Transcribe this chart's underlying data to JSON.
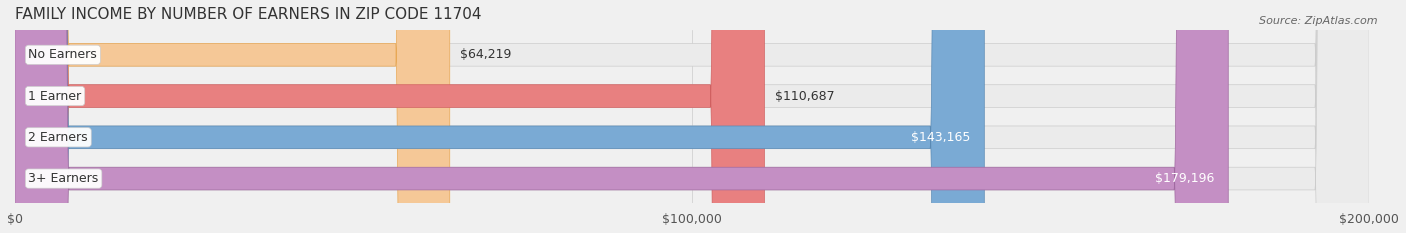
{
  "title": "FAMILY INCOME BY NUMBER OF EARNERS IN ZIP CODE 11704",
  "source": "Source: ZipAtlas.com",
  "categories": [
    "No Earners",
    "1 Earner",
    "2 Earners",
    "3+ Earners"
  ],
  "values": [
    64219,
    110687,
    143165,
    179196
  ],
  "labels": [
    "$64,219",
    "$110,687",
    "$143,165",
    "$179,196"
  ],
  "bar_colors": [
    "#f5c897",
    "#e88080",
    "#7aaad4",
    "#c48fc4"
  ],
  "bar_edge_colors": [
    "#e8a855",
    "#d06060",
    "#5a8ab4",
    "#a06aa0"
  ],
  "background_color": "#f0f0f0",
  "bar_bg_color": "#e8e8e8",
  "xlim": [
    0,
    200000
  ],
  "xtick_vals": [
    0,
    100000,
    200000
  ],
  "xtick_labels": [
    "$0",
    "$100,000",
    "$200,000"
  ],
  "title_fontsize": 11,
  "source_fontsize": 8,
  "label_fontsize": 9,
  "tick_fontsize": 9,
  "bar_height": 0.55,
  "fig_width": 14.06,
  "fig_height": 2.33
}
